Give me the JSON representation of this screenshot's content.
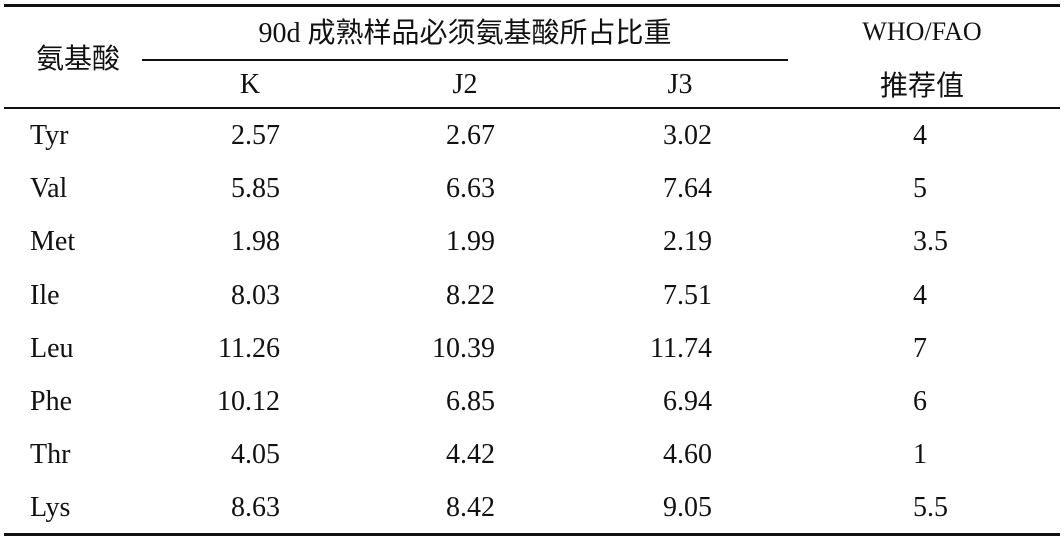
{
  "table": {
    "header": {
      "row_label": "氨基酸",
      "group": "90d 成熟样品必须氨基酸所占比重",
      "columns": [
        "K",
        "J2",
        "J3"
      ],
      "reference": [
        "WHO/FAO",
        "推荐值"
      ]
    },
    "rows": [
      [
        "Tyr",
        "2.57",
        "2.67",
        "3.02",
        "4"
      ],
      [
        "Val",
        "5.85",
        "6.63",
        "7.64",
        "5"
      ],
      [
        "Met",
        "1.98",
        "1.99",
        "2.19",
        "3.5"
      ],
      [
        "Ile",
        "8.03",
        "8.22",
        "7.51",
        "4"
      ],
      [
        "Leu",
        "11.26",
        "10.39",
        "11.74",
        "7"
      ],
      [
        "Phe",
        "10.12",
        "6.85",
        "6.94",
        "6"
      ],
      [
        "Thr",
        "4.05",
        "4.42",
        "4.60",
        "1"
      ],
      [
        "Lys",
        "8.63",
        "8.42",
        "9.05",
        "5.5"
      ]
    ]
  }
}
